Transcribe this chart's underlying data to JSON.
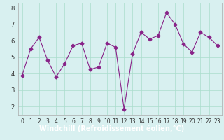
{
  "x": [
    0,
    1,
    2,
    3,
    4,
    5,
    6,
    7,
    8,
    9,
    10,
    11,
    12,
    13,
    14,
    15,
    16,
    17,
    18,
    19,
    20,
    21,
    22,
    23
  ],
  "y": [
    3.9,
    5.5,
    6.2,
    4.8,
    3.8,
    4.6,
    5.7,
    5.85,
    4.25,
    4.4,
    5.85,
    5.6,
    1.85,
    5.2,
    6.5,
    6.1,
    6.3,
    7.7,
    7.0,
    5.8,
    5.3,
    6.5,
    6.2,
    5.7
  ],
  "line_color": "#882288",
  "marker": "D",
  "marker_size": 2.5,
  "bg_color": "#d8f0f0",
  "grid_color": "#aaddcc",
  "xlabel": "Windchill (Refroidissement éolien,°C)",
  "xlabel_fontsize": 7,
  "xlabel_color": "#ffffff",
  "xlabel_bg": "#882288",
  "xtick_fontsize": 5.5,
  "ytick_fontsize": 6,
  "ylim": [
    1.5,
    8.3
  ],
  "xlim": [
    -0.5,
    23.5
  ],
  "yticks": [
    2,
    3,
    4,
    5,
    6,
    7,
    8
  ],
  "xticks": [
    0,
    1,
    2,
    3,
    4,
    5,
    6,
    7,
    8,
    9,
    10,
    11,
    12,
    13,
    14,
    15,
    16,
    17,
    18,
    19,
    20,
    21,
    22,
    23
  ]
}
